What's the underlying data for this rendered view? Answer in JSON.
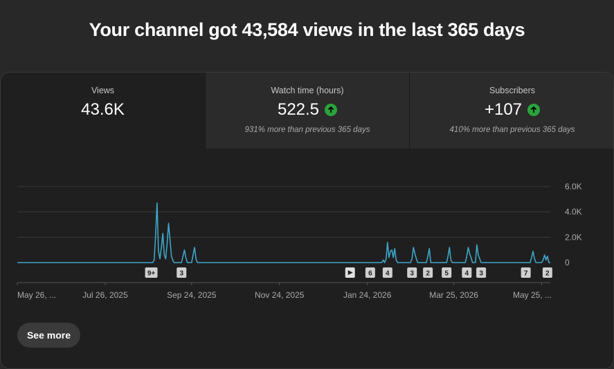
{
  "headline": "Your channel got 43,584 views in the last 365 days",
  "metrics": [
    {
      "label": "Views",
      "value": "43.6K",
      "sub": "",
      "trend_icon": ""
    },
    {
      "label": "Watch time (hours)",
      "value": "522.5",
      "sub": "931% more than previous 365 days",
      "trend_icon": "arrow-up-circle-icon"
    },
    {
      "label": "Subscribers",
      "value": "+107",
      "sub": "410% more than previous 365 days",
      "trend_icon": "arrow-up-circle-icon"
    }
  ],
  "colors": {
    "line": "#3ea6c8",
    "trend_up": "#2aa33b",
    "grid": "#3a3a3a"
  },
  "chart_data": {
    "type": "line",
    "ylim": [
      0,
      6000
    ],
    "y_ticks": [
      "6.0K",
      "4.0K",
      "2.0K",
      "0"
    ],
    "y_tick_values": [
      6000,
      4000,
      2000,
      0
    ],
    "x_ticks": [
      "May 26, ...",
      "Jul 26, 2025",
      "Sep 24, 2025",
      "Nov 24, 2025",
      "Jan 24, 2026",
      "Mar 25, 2026",
      "May 25, ..."
    ],
    "x_tick_days": [
      0,
      61,
      121,
      182,
      243,
      303,
      364
    ],
    "series": [
      {
        "values": [
          [
            0,
            0
          ],
          [
            94,
            0
          ],
          [
            95,
            200
          ],
          [
            96,
            2200
          ],
          [
            97,
            4700
          ],
          [
            98,
            900
          ],
          [
            99,
            300
          ],
          [
            100,
            1200
          ],
          [
            101,
            2300
          ],
          [
            102,
            600
          ],
          [
            103,
            300
          ],
          [
            104,
            1500
          ],
          [
            105,
            3100
          ],
          [
            106,
            1800
          ],
          [
            107,
            500
          ],
          [
            108,
            150
          ],
          [
            109,
            0
          ],
          [
            114,
            0
          ],
          [
            115,
            500
          ],
          [
            116,
            1000
          ],
          [
            117,
            400
          ],
          [
            118,
            0
          ],
          [
            121,
            0
          ],
          [
            122,
            600
          ],
          [
            123,
            1200
          ],
          [
            124,
            300
          ],
          [
            125,
            0
          ],
          [
            253,
            0
          ],
          [
            254,
            200
          ],
          [
            255,
            0
          ],
          [
            256,
            300
          ],
          [
            257,
            1600
          ],
          [
            258,
            400
          ],
          [
            259,
            900
          ],
          [
            260,
            1000
          ],
          [
            261,
            400
          ],
          [
            262,
            1100
          ],
          [
            263,
            200
          ],
          [
            264,
            0
          ],
          [
            273,
            0
          ],
          [
            274,
            300
          ],
          [
            275,
            1200
          ],
          [
            276,
            700
          ],
          [
            277,
            300
          ],
          [
            278,
            0
          ],
          [
            284,
            0
          ],
          [
            285,
            500
          ],
          [
            286,
            1100
          ],
          [
            287,
            0
          ],
          [
            298,
            0
          ],
          [
            299,
            500
          ],
          [
            300,
            1200
          ],
          [
            301,
            200
          ],
          [
            302,
            0
          ],
          [
            311,
            0
          ],
          [
            312,
            500
          ],
          [
            313,
            1200
          ],
          [
            314,
            700
          ],
          [
            315,
            400
          ],
          [
            316,
            0
          ],
          [
            318,
            0
          ],
          [
            319,
            1400
          ],
          [
            320,
            600
          ],
          [
            321,
            300
          ],
          [
            322,
            0
          ],
          [
            356,
            0
          ],
          [
            357,
            400
          ],
          [
            358,
            900
          ],
          [
            359,
            300
          ],
          [
            360,
            0
          ],
          [
            364,
            0
          ],
          [
            365,
            200
          ],
          [
            366,
            600
          ],
          [
            367,
            200
          ],
          [
            368,
            500
          ],
          [
            369,
            0
          ],
          [
            370,
            0
          ]
        ]
      }
    ],
    "annotation_markers": [
      {
        "day": 93,
        "label": "9+"
      },
      {
        "day": 114,
        "label": "3"
      },
      {
        "day": 231,
        "label": "",
        "icon": "play-icon"
      },
      {
        "day": 245,
        "label": "6"
      },
      {
        "day": 257,
        "label": "4"
      },
      {
        "day": 274,
        "label": "3"
      },
      {
        "day": 285,
        "label": "2"
      },
      {
        "day": 298,
        "label": "5"
      },
      {
        "day": 312,
        "label": "4"
      },
      {
        "day": 322,
        "label": "3"
      },
      {
        "day": 353,
        "label": "7"
      },
      {
        "day": 368,
        "label": "2"
      }
    ]
  },
  "see_more_label": "See more"
}
